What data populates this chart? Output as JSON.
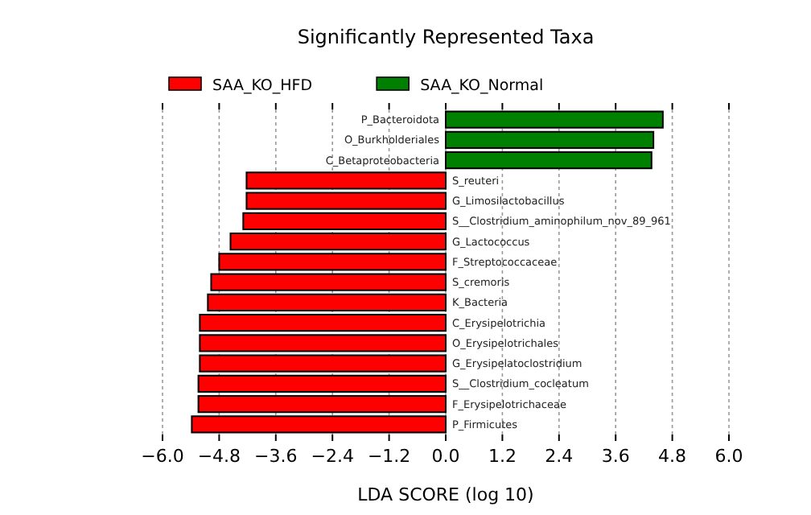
{
  "chart_data": {
    "type": "bar",
    "orientation": "horizontal",
    "title": "Significantly Represented Taxa",
    "xlabel": "LDA SCORE (log 10)",
    "categories": [
      "P_Bacteroidota",
      "O_Burkholderiales",
      "C_Betaproteobacteria",
      "S_reuteri",
      "G_Limosilactobacillus",
      "S__Clostridium_aminophilum_nov_89_961",
      "G_Lactococcus",
      "F_Streptococcaceae",
      "S_cremoris",
      "K_Bacteria",
      "C_Erysipelotrichia",
      "O_Erysipelotrichales",
      "G_Erysipelatoclostridium",
      "S__Clostridium_cocleatum",
      "F_Erysipelotrichaceae",
      "P_Firmicutes"
    ],
    "series": [
      {
        "name": "SAA_KO_HFD",
        "color": "#ff0000",
        "values": [
          null,
          null,
          null,
          -4.22,
          -4.22,
          -4.29,
          -4.56,
          -4.8,
          -4.97,
          -5.04,
          -5.21,
          -5.21,
          -5.21,
          -5.24,
          -5.24,
          -5.38
        ]
      },
      {
        "name": "SAA_KO_Normal",
        "color": "#008000",
        "values": [
          4.6,
          4.4,
          4.36,
          null,
          null,
          null,
          null,
          null,
          null,
          null,
          null,
          null,
          null,
          null,
          null,
          null
        ]
      }
    ],
    "xlim": [
      -6,
      6
    ],
    "xticks": [
      {
        "value": -6,
        "label": "−6.0"
      },
      {
        "value": -4.8,
        "label": "−4.8"
      },
      {
        "value": -3.6,
        "label": "−3.6"
      },
      {
        "value": -2.4,
        "label": "−2.4"
      },
      {
        "value": -1.2,
        "label": "−1.2"
      },
      {
        "value": 0,
        "label": "0.0"
      },
      {
        "value": 1.2,
        "label": "1.2"
      },
      {
        "value": 2.4,
        "label": "2.4"
      },
      {
        "value": 3.6,
        "label": "3.6"
      },
      {
        "value": 4.8,
        "label": "4.8"
      },
      {
        "value": 6,
        "label": "6.0"
      }
    ],
    "grid": "x",
    "legend": "top"
  }
}
